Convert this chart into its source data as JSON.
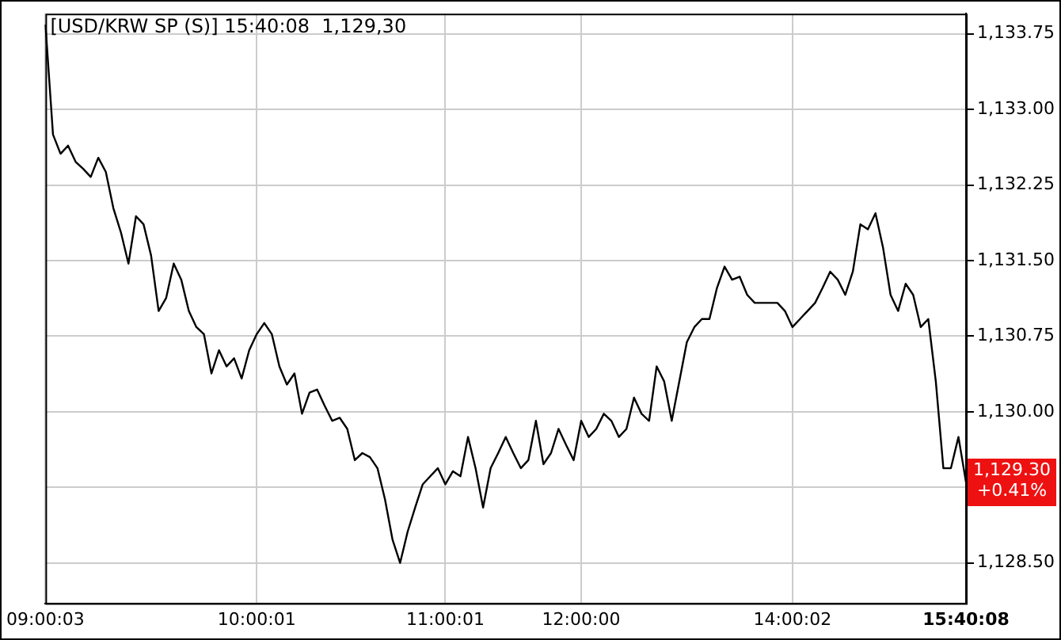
{
  "chart_data": {
    "type": "line",
    "title": "[USD/KRW SP (S)] 15:40:08  1,129,30",
    "categories": [
      "09:00:03",
      null,
      null,
      null,
      null,
      null,
      null,
      null,
      null,
      null,
      null,
      null,
      null,
      null,
      null,
      null,
      null,
      null,
      null,
      null,
      null,
      null,
      null,
      null,
      null,
      null,
      null,
      null,
      "10:00:01",
      null,
      null,
      null,
      null,
      null,
      null,
      null,
      null,
      null,
      null,
      null,
      null,
      null,
      null,
      null,
      null,
      null,
      null,
      null,
      null,
      null,
      null,
      null,
      null,
      "11:00:01",
      null,
      null,
      null,
      null,
      null,
      null,
      null,
      null,
      null,
      null,
      null,
      null,
      null,
      null,
      null,
      null,
      null,
      "12:00:00",
      null,
      null,
      null,
      null,
      null,
      null,
      null,
      null,
      null,
      null,
      null,
      null,
      null,
      null,
      null,
      null,
      null,
      null,
      null,
      null,
      null,
      null,
      null,
      null,
      null,
      null,
      null,
      "14:00:02",
      null,
      null,
      null,
      null,
      null,
      null,
      null,
      null,
      null,
      null,
      null,
      null,
      null,
      null,
      null,
      null,
      null,
      null,
      null,
      null,
      null,
      null,
      "15:40:08"
    ],
    "series": [
      {
        "color": "#000000",
        "values": [
          1133.84,
          1132.75,
          1132.56,
          1132.64,
          1132.48,
          1132.41,
          1132.33,
          1132.52,
          1132.38,
          1132.02,
          1131.78,
          1131.47,
          1131.94,
          1131.86,
          1131.55,
          1131.0,
          1131.13,
          1131.47,
          1131.31,
          1131.0,
          1130.84,
          1130.77,
          1130.38,
          1130.61,
          1130.45,
          1130.53,
          1130.33,
          1130.61,
          1130.77,
          1130.88,
          1130.77,
          1130.45,
          1130.27,
          1130.38,
          1129.98,
          1130.19,
          1130.22,
          1130.06,
          1129.91,
          1129.94,
          1129.83,
          1129.52,
          1129.59,
          1129.55,
          1129.44,
          1129.13,
          1128.73,
          1128.5,
          1128.81,
          1129.05,
          1129.28,
          1129.36,
          1129.44,
          1129.28,
          1129.41,
          1129.36,
          1129.75,
          1129.44,
          1129.05,
          1129.44,
          1129.59,
          1129.75,
          1129.59,
          1129.44,
          1129.52,
          1129.91,
          1129.48,
          1129.59,
          1129.83,
          1129.67,
          1129.52,
          1129.91,
          1129.75,
          1129.83,
          1129.98,
          1129.91,
          1129.75,
          1129.83,
          1130.14,
          1129.98,
          1129.91,
          1130.45,
          1130.3,
          1129.91,
          1130.3,
          1130.69,
          1130.84,
          1130.92,
          1130.92,
          1131.23,
          1131.44,
          1131.31,
          1131.34,
          1131.16,
          1131.08,
          1131.08,
          1131.08,
          1131.08,
          1131.0,
          1130.84,
          1130.92,
          1131.0,
          1131.08,
          1131.23,
          1131.39,
          1131.31,
          1131.16,
          1131.39,
          1131.86,
          1131.81,
          1131.97,
          1131.63,
          1131.16,
          1131.0,
          1131.27,
          1131.16,
          1130.84,
          1130.92,
          1130.3,
          1129.44,
          1129.44,
          1129.75,
          1129.3
        ]
      }
    ],
    "ylim": [
      1128.1,
      1133.95
    ],
    "yticks": [
      {
        "value": 1128.5,
        "label": "1,128.50"
      },
      {
        "value": 1129.25,
        "label": null
      },
      {
        "value": 1130,
        "label": "1,130.00"
      },
      {
        "value": 1130.75,
        "label": "1,130.75"
      },
      {
        "value": 1131.5,
        "label": "1,131.50"
      },
      {
        "value": 1132.25,
        "label": "1,132.25"
      },
      {
        "value": 1133,
        "label": "1,133.00"
      },
      {
        "value": 1133.75,
        "label": "1,133.75"
      }
    ],
    "annotations": [
      "1,129.30",
      "+0.41%"
    ],
    "grid": true,
    "legend": false,
    "marker": "none"
  }
}
